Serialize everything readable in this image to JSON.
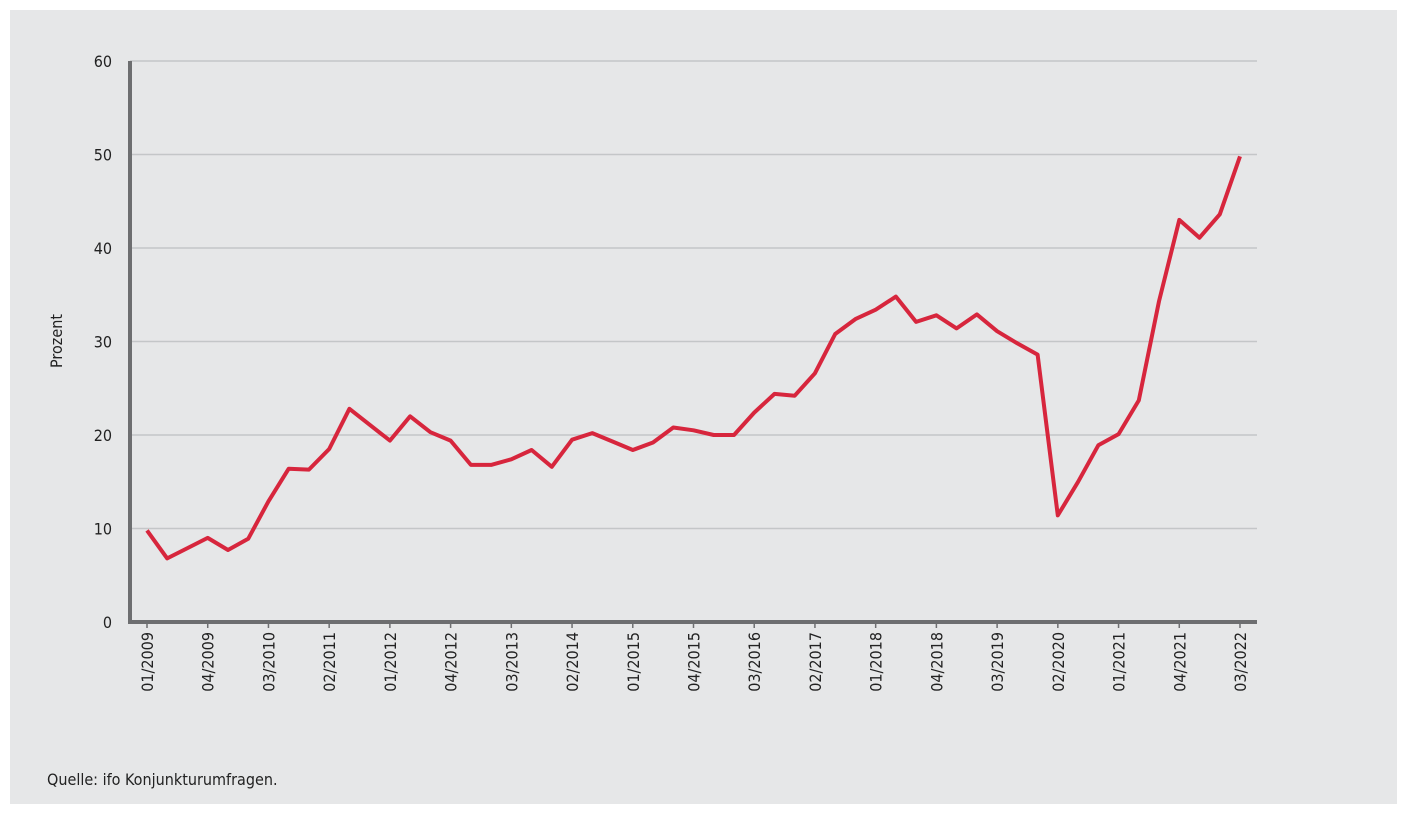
{
  "chart_data": {
    "type": "line",
    "y_label": "Prozent",
    "source": "Quelle: ifo Konjunkturumfragen.",
    "categories": [
      "01/2009",
      null,
      null,
      "04/2009",
      null,
      null,
      "03/2010",
      null,
      null,
      "02/2011",
      null,
      null,
      "01/2012",
      null,
      null,
      "04/2012",
      null,
      null,
      "03/2013",
      null,
      null,
      "02/2014",
      null,
      null,
      "01/2015",
      null,
      null,
      "04/2015",
      null,
      null,
      "03/2016",
      null,
      null,
      "02/2017",
      null,
      null,
      "01/2018",
      null,
      null,
      "04/2018",
      null,
      null,
      "03/2019",
      null,
      null,
      "02/2020",
      null,
      null,
      "01/2021",
      null,
      null,
      "04/2021",
      null,
      null,
      "03/2022"
    ],
    "values": [
      9.8,
      6.8,
      7.9,
      9.0,
      7.7,
      8.9,
      12.9,
      16.4,
      16.3,
      18.5,
      22.8,
      21.1,
      19.4,
      22.0,
      20.3,
      19.4,
      16.8,
      16.8,
      17.4,
      18.4,
      16.6,
      19.5,
      20.2,
      19.3,
      18.4,
      19.2,
      20.8,
      20.5,
      20.0,
      20.0,
      22.4,
      24.4,
      24.2,
      26.6,
      30.8,
      32.4,
      33.4,
      34.8,
      32.1,
      32.8,
      31.4,
      32.9,
      31.1,
      29.8,
      28.6,
      11.4,
      15.0,
      18.9,
      20.1,
      23.7,
      34.3,
      43.0,
      41.1,
      43.6,
      49.8
    ],
    "color": "#d7263d",
    "ylim": [
      0,
      60
    ],
    "yticks": [
      0,
      10,
      20,
      30,
      40,
      50,
      60
    ],
    "grid": true
  }
}
